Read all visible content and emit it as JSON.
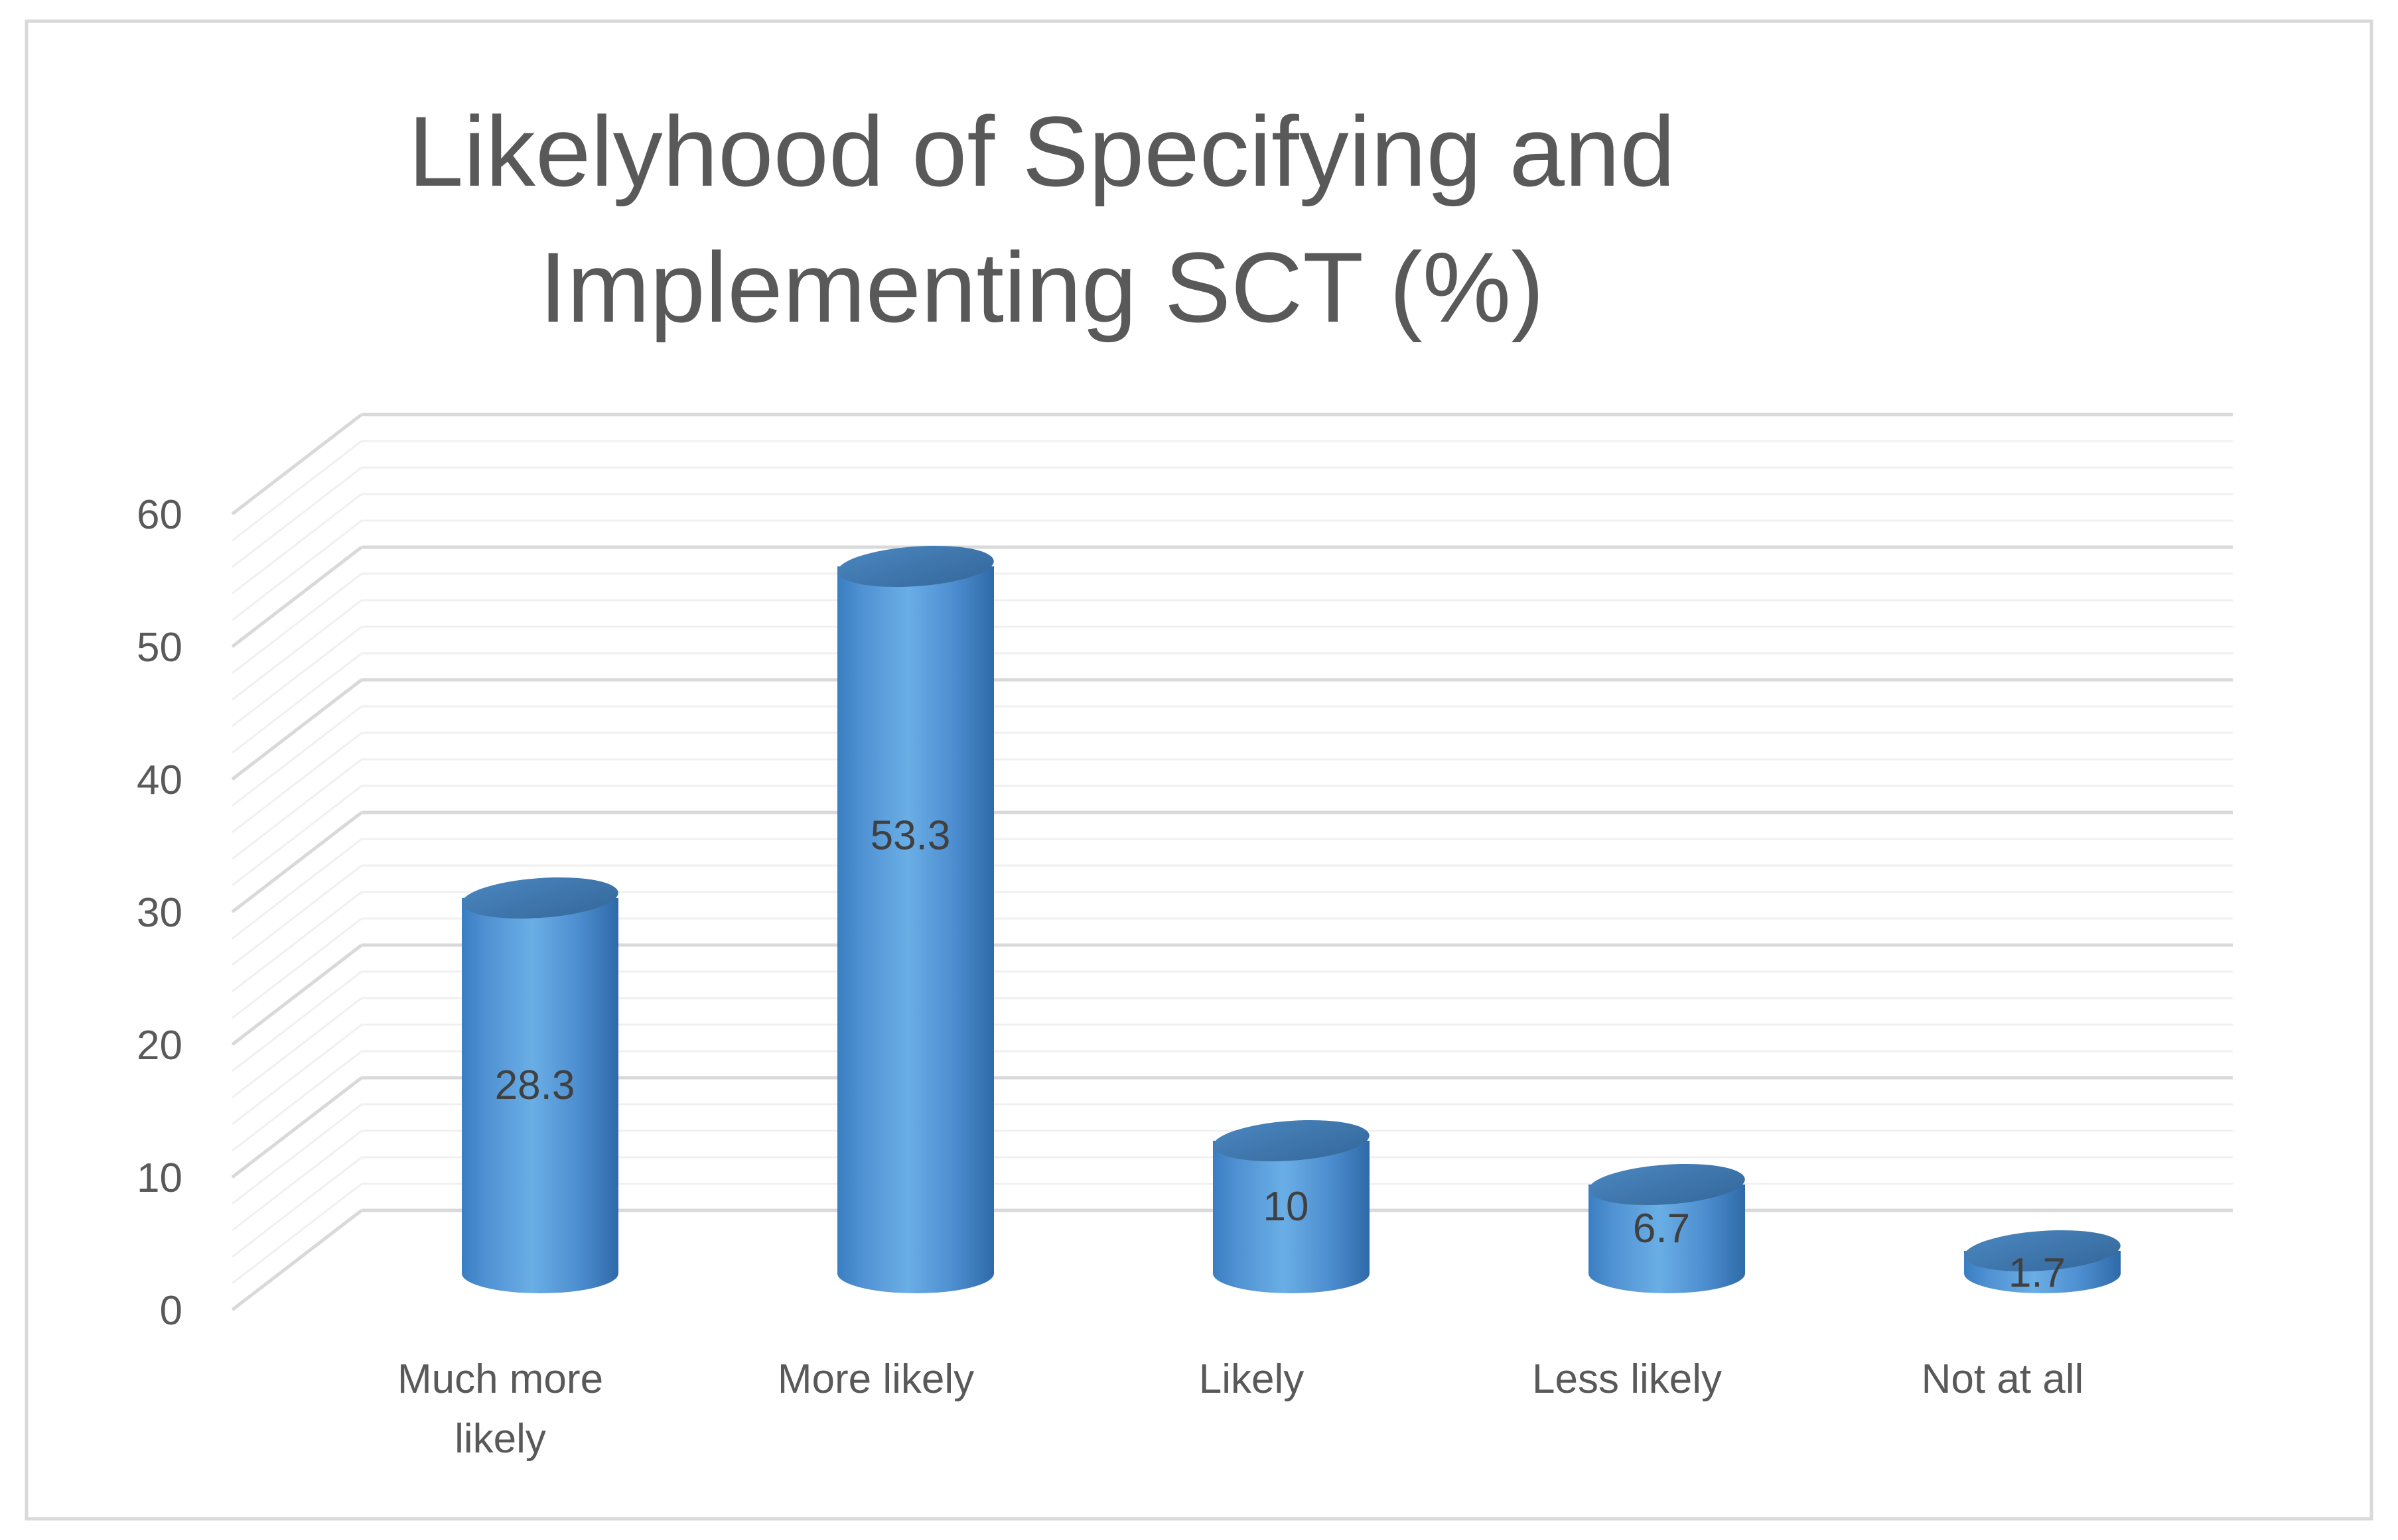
{
  "chart_data": {
    "type": "bar",
    "style": "3d-cylinder",
    "title_lines": [
      "Likelyhood of Specifying and",
      "Implementing SCT (%)"
    ],
    "categories": [
      [
        "Much more",
        "likely"
      ],
      [
        "More likely"
      ],
      [
        "Likely"
      ],
      [
        "Less likely"
      ],
      [
        "Not at all"
      ]
    ],
    "values": [
      28.3,
      53.3,
      10,
      6.7,
      1.7
    ],
    "value_labels": [
      "28.3",
      "53.3",
      "10",
      "6.7",
      "1.7"
    ],
    "ylim": [
      0,
      60
    ],
    "yticks": [
      "0",
      "10",
      "20",
      "30",
      "40",
      "50",
      "60"
    ],
    "minor_gridlines_per_major": 4,
    "grid": true,
    "legend": "none",
    "colors": {
      "bar_front": "#5b9bd5",
      "bar_side": "#2e75b6",
      "bar_top": "#41719c",
      "grid_major": "#d9d9d9",
      "grid_minor": "#f0f0f0",
      "border": "#d9d9d9",
      "text": "#595959"
    }
  }
}
